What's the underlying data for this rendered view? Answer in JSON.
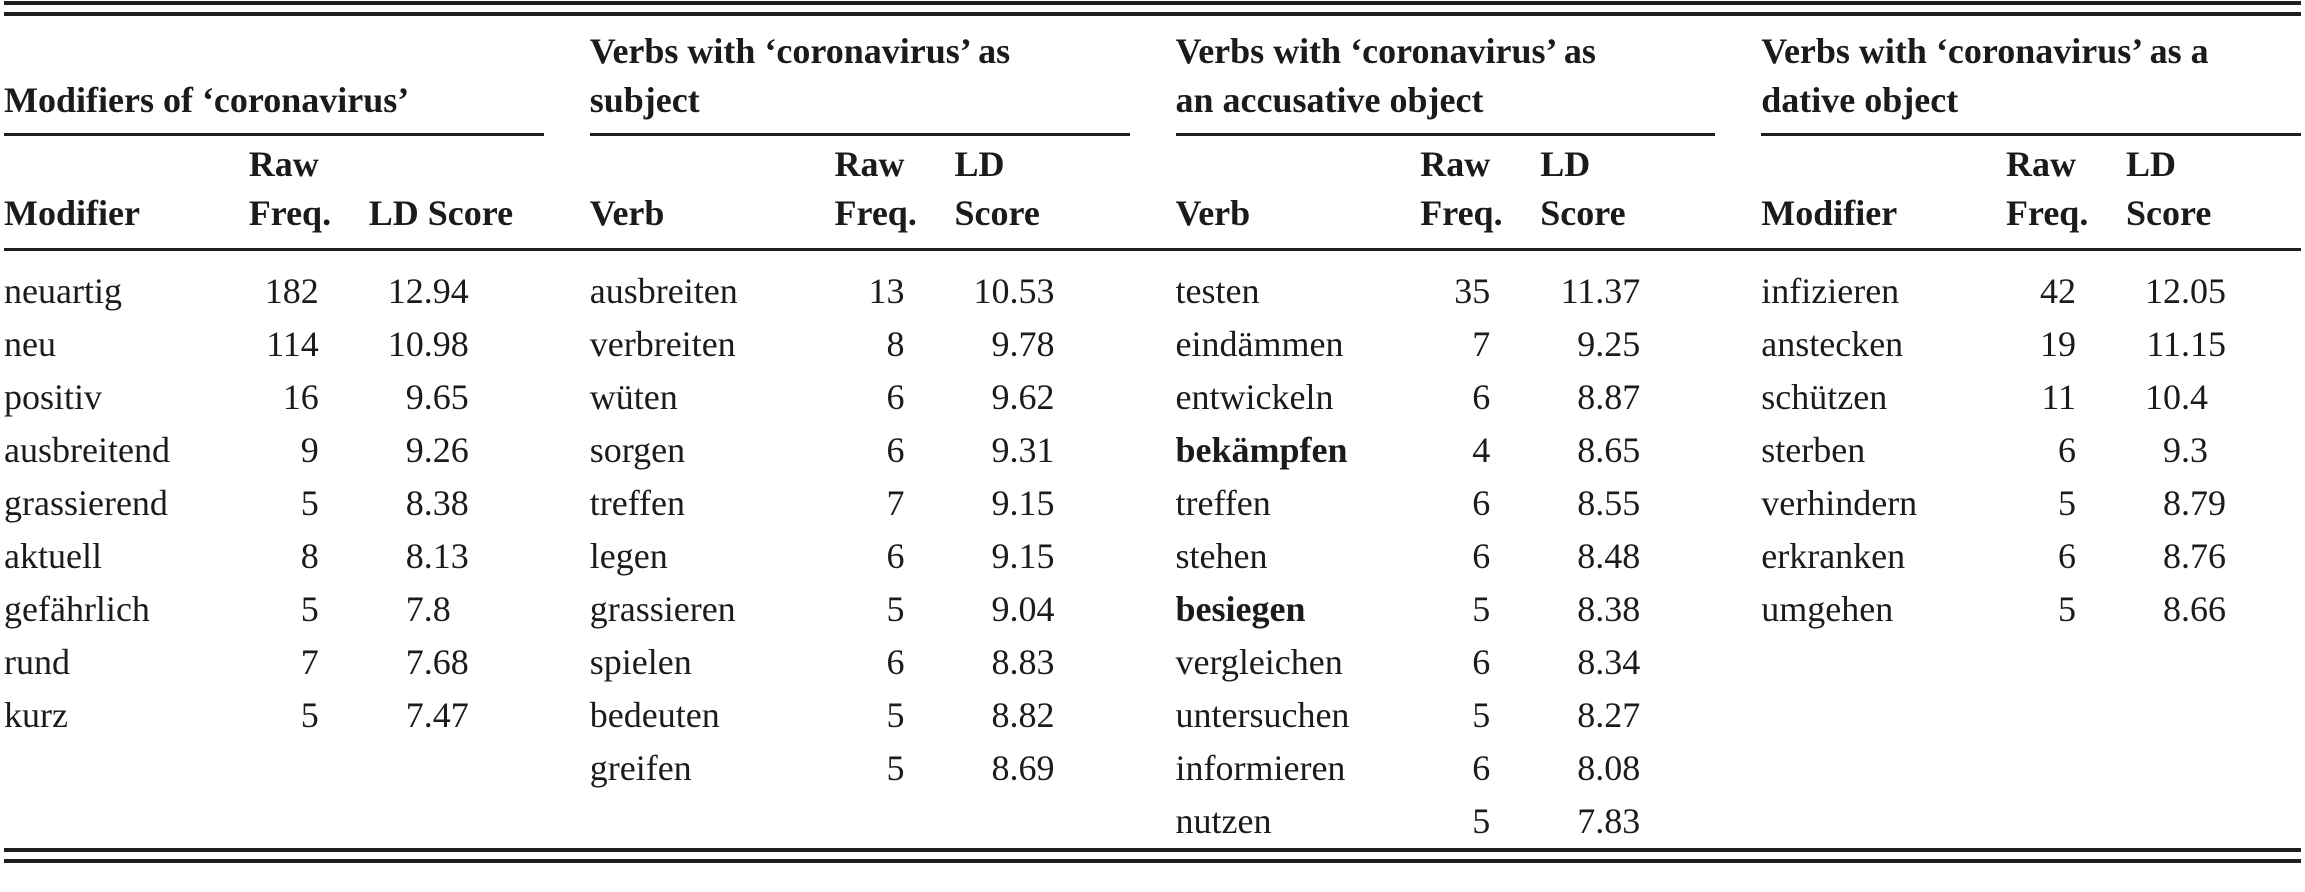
{
  "table": {
    "kind": "collocation-table",
    "groups": [
      {
        "title_lines": [
          "Modifiers of ‘coronavirus’"
        ],
        "word_header": "Modifier",
        "freq_header_lines": [
          "Raw",
          "Freq."
        ],
        "score_header_lines": [
          "LD Score"
        ],
        "rows": [
          {
            "word": "neuartig",
            "freq": "182",
            "score": "12.94",
            "bold": false
          },
          {
            "word": "neu",
            "freq": "114",
            "score": "10.98",
            "bold": false
          },
          {
            "word": "positiv",
            "freq": "16",
            "score": "9.65",
            "bold": false
          },
          {
            "word": "ausbreitend",
            "freq": "9",
            "score": "9.26",
            "bold": false
          },
          {
            "word": "grassierend",
            "freq": "5",
            "score": "8.38",
            "bold": false
          },
          {
            "word": "aktuell",
            "freq": "8",
            "score": "8.13",
            "bold": false
          },
          {
            "word": "gefährlich",
            "freq": "5",
            "score": "7.8",
            "bold": false
          },
          {
            "word": "rund",
            "freq": "7",
            "score": "7.68",
            "bold": false
          },
          {
            "word": "kurz",
            "freq": "5",
            "score": "7.47",
            "bold": false
          }
        ]
      },
      {
        "title_lines": [
          "Verbs with ‘coronavirus’ as",
          "subject"
        ],
        "word_header": "Verb",
        "freq_header_lines": [
          "Raw",
          "Freq."
        ],
        "score_header_lines": [
          "LD",
          "Score"
        ],
        "rows": [
          {
            "word": "ausbreiten",
            "freq": "13",
            "score": "10.53",
            "bold": false
          },
          {
            "word": "verbreiten",
            "freq": "8",
            "score": "9.78",
            "bold": false
          },
          {
            "word": "wüten",
            "freq": "6",
            "score": "9.62",
            "bold": false
          },
          {
            "word": "sorgen",
            "freq": "6",
            "score": "9.31",
            "bold": false
          },
          {
            "word": "treffen",
            "freq": "7",
            "score": "9.15",
            "bold": false
          },
          {
            "word": "legen",
            "freq": "6",
            "score": "9.15",
            "bold": false
          },
          {
            "word": "grassieren",
            "freq": "5",
            "score": "9.04",
            "bold": false
          },
          {
            "word": "spielen",
            "freq": "6",
            "score": "8.83",
            "bold": false
          },
          {
            "word": "bedeuten",
            "freq": "5",
            "score": "8.82",
            "bold": false
          },
          {
            "word": "greifen",
            "freq": "5",
            "score": "8.69",
            "bold": false
          }
        ]
      },
      {
        "title_lines": [
          "Verbs with ‘coronavirus’ as",
          "an accusative object"
        ],
        "word_header": "Verb",
        "freq_header_lines": [
          "Raw",
          "Freq."
        ],
        "score_header_lines": [
          "LD",
          "Score"
        ],
        "rows": [
          {
            "word": "testen",
            "freq": "35",
            "score": "11.37",
            "bold": false
          },
          {
            "word": "eindämmen",
            "freq": "7",
            "score": "9.25",
            "bold": false
          },
          {
            "word": "entwickeln",
            "freq": "6",
            "score": "8.87",
            "bold": false
          },
          {
            "word": "bekämpfen",
            "freq": "4",
            "score": "8.65",
            "bold": true
          },
          {
            "word": "treffen",
            "freq": "6",
            "score": "8.55",
            "bold": false
          },
          {
            "word": "stehen",
            "freq": "6",
            "score": "8.48",
            "bold": false
          },
          {
            "word": "besiegen",
            "freq": "5",
            "score": "8.38",
            "bold": true
          },
          {
            "word": "vergleichen",
            "freq": "6",
            "score": "8.34",
            "bold": false
          },
          {
            "word": "untersuchen",
            "freq": "5",
            "score": "8.27",
            "bold": false
          },
          {
            "word": "informieren",
            "freq": "6",
            "score": "8.08",
            "bold": false
          },
          {
            "word": "nutzen",
            "freq": "5",
            "score": "7.83",
            "bold": false
          }
        ]
      },
      {
        "title_lines": [
          "Verbs with ‘coronavirus’ as a",
          "dative object"
        ],
        "word_header": "Modifier",
        "freq_header_lines": [
          "Raw",
          "Freq."
        ],
        "score_header_lines": [
          "LD",
          "Score"
        ],
        "rows": [
          {
            "word": "infizieren",
            "freq": "42",
            "score": "12.05",
            "bold": false
          },
          {
            "word": "anstecken",
            "freq": "19",
            "score": "11.15",
            "bold": false
          },
          {
            "word": "schützen",
            "freq": "11",
            "score": "10.4",
            "bold": false
          },
          {
            "word": "sterben",
            "freq": "6",
            "score": "9.3",
            "bold": false
          },
          {
            "word": "verhindern",
            "freq": "5",
            "score": "8.79",
            "bold": false
          },
          {
            "word": "erkranken",
            "freq": "6",
            "score": "8.76",
            "bold": false
          },
          {
            "word": "umgehen",
            "freq": "5",
            "score": "8.66",
            "bold": false
          }
        ]
      }
    ]
  }
}
